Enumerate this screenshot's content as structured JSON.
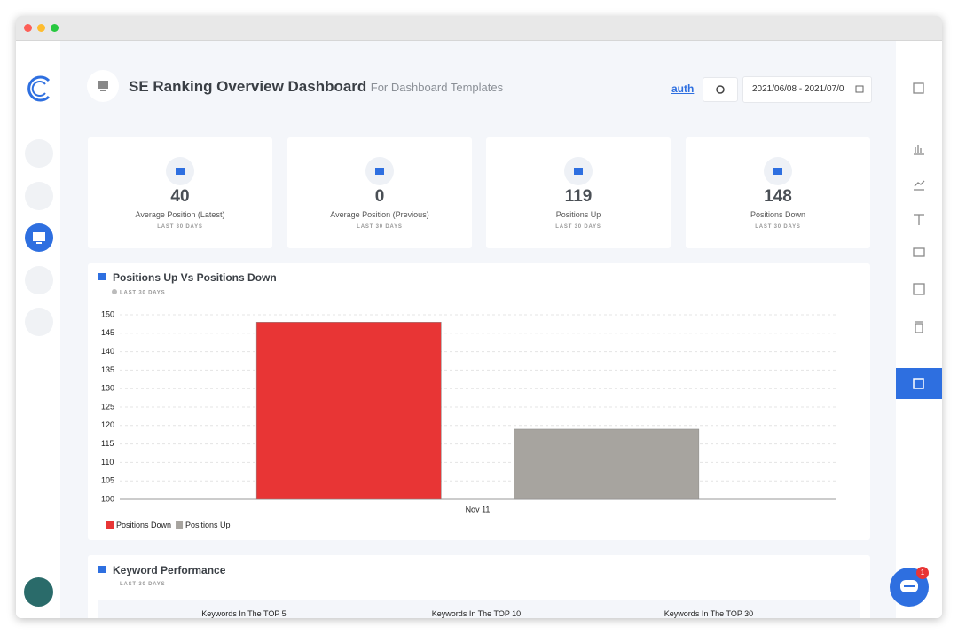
{
  "header": {
    "title": "SE Ranking Overview Dashboard",
    "subtitle": "For Dashboard Templates",
    "link": "auth",
    "date_range": "2021/06/08 - 2021/07/0"
  },
  "kpis": [
    {
      "value": "40",
      "label": "Average Position (Latest)",
      "period": "LAST 30 DAYS"
    },
    {
      "value": "0",
      "label": "Average Position (Previous)",
      "period": "LAST 30 DAYS"
    },
    {
      "value": "119",
      "label": "Positions Up",
      "period": "LAST 30 DAYS"
    },
    {
      "value": "148",
      "label": "Positions Down",
      "period": "LAST 30 DAYS"
    }
  ],
  "chart_data": {
    "type": "bar",
    "title": "Positions Up Vs Positions Down",
    "subtitle": "LAST 30 DAYS",
    "categories": [
      "Nov 11"
    ],
    "series": [
      {
        "name": "Positions Down",
        "color": "#e83535",
        "values": [
          148
        ]
      },
      {
        "name": "Positions Up",
        "color": "#a7a49f",
        "values": [
          119
        ]
      }
    ],
    "ylim": [
      100,
      150
    ],
    "yticks": [
      100,
      105,
      110,
      115,
      120,
      125,
      130,
      135,
      140,
      145,
      150
    ],
    "grid": true,
    "legend": "bottom-left"
  },
  "keyword_performance": {
    "title": "Keyword Performance",
    "subtitle": "LAST 30 DAYS",
    "columns": [
      "Keywords In The TOP 5",
      "Keywords In The TOP 10",
      "Keywords In The TOP 30"
    ]
  },
  "chat_badge": "1"
}
